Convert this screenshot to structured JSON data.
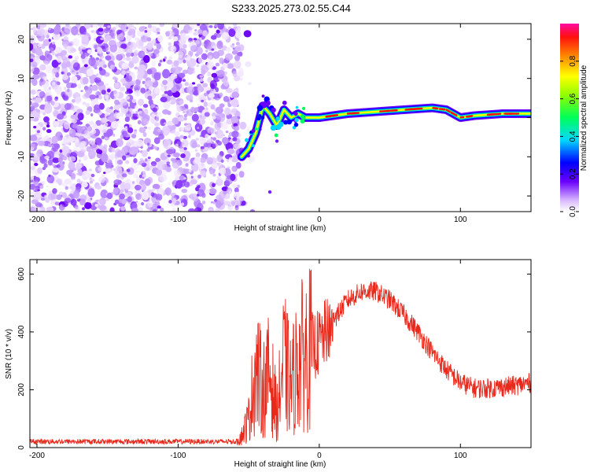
{
  "title": "S233.2025.273.02.55.C44",
  "chart_data": [
    {
      "type": "heatmap",
      "xlabel": "Height of straight line (km)",
      "ylabel": "Frequency (Hz)",
      "xlim": [
        -205,
        150
      ],
      "ylim": [
        -24,
        24
      ],
      "xticks": [
        -200,
        -100,
        0,
        100
      ],
      "xtick_labels": [
        "-200",
        "-100",
        "0",
        "100"
      ],
      "yticks": [
        -20,
        -10,
        0,
        10,
        20
      ],
      "ytick_labels": [
        "-20",
        "-10",
        "0",
        "10",
        "20"
      ],
      "colorbar": {
        "label": "Normalized spectral amplitude",
        "range": [
          0,
          1
        ],
        "ticks": [
          0,
          0.2,
          0.4,
          0.6,
          0.8
        ],
        "tick_labels": [
          "0.0",
          "0.2",
          "0.4",
          "0.6",
          "0.8"
        ],
        "colormap": "rainbow (white-violet-blue-cyan-green-yellow-red-magenta)"
      },
      "noise_region_x": [
        -205,
        -55
      ],
      "signal_track": [
        {
          "x": -55,
          "y": -10
        },
        {
          "x": -50,
          "y": -8
        },
        {
          "x": -45,
          "y": -4
        },
        {
          "x": -40,
          "y": 3
        },
        {
          "x": -35,
          "y": 1
        },
        {
          "x": -30,
          "y": -2
        },
        {
          "x": -25,
          "y": 2
        },
        {
          "x": -20,
          "y": 0
        },
        {
          "x": -15,
          "y": 1
        },
        {
          "x": -10,
          "y": 0
        },
        {
          "x": 0,
          "y": 0
        },
        {
          "x": 20,
          "y": 1
        },
        {
          "x": 40,
          "y": 1.5
        },
        {
          "x": 60,
          "y": 2
        },
        {
          "x": 80,
          "y": 2.5
        },
        {
          "x": 90,
          "y": 2
        },
        {
          "x": 100,
          "y": 0
        },
        {
          "x": 110,
          "y": 0.5
        },
        {
          "x": 130,
          "y": 1
        },
        {
          "x": 150,
          "y": 1
        }
      ]
    },
    {
      "type": "line",
      "xlabel": "Height of straight line (km)",
      "ylabel": "SNR (10 * v/v)",
      "xlim": [
        -205,
        150
      ],
      "ylim": [
        0,
        650
      ],
      "xticks": [
        -200,
        -100,
        0,
        100
      ],
      "xtick_labels": [
        "-200",
        "-100",
        "0",
        "100"
      ],
      "yticks": [
        0,
        200,
        400,
        600
      ],
      "ytick_labels": [
        "0",
        "200",
        "400",
        "600"
      ],
      "series": [
        {
          "name": "SNR",
          "color": "#e8291c",
          "envelope_x": [
            -205,
            -60,
            -55,
            -50,
            -45,
            -40,
            -35,
            -30,
            -25,
            -20,
            -15,
            -10,
            -5,
            0,
            10,
            20,
            30,
            40,
            50,
            60,
            70,
            80,
            90,
            100,
            110,
            120,
            130,
            140,
            150
          ],
          "envelope_y": [
            20,
            20,
            40,
            100,
            280,
            200,
            260,
            120,
            300,
            210,
            300,
            330,
            350,
            360,
            440,
            510,
            540,
            540,
            510,
            460,
            400,
            330,
            270,
            225,
            205,
            205,
            210,
            215,
            225
          ]
        }
      ]
    }
  ]
}
